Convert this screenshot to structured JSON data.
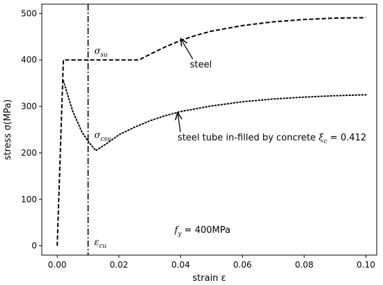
{
  "chart_data": {
    "type": "line",
    "xlabel": "strain ε",
    "ylabel": "stress σ(MPa)",
    "xlim": [
      -0.005,
      0.1035
    ],
    "ylim": [
      -20,
      520
    ],
    "x_ticks": [
      "0.00",
      "0.02",
      "0.04",
      "0.06",
      "0.08",
      "0.10"
    ],
    "y_ticks": [
      "0",
      "100",
      "200",
      "300",
      "400",
      "500"
    ],
    "grid": false,
    "series": [
      {
        "name": "steel",
        "style": "dashed",
        "color": "#000000",
        "points": [
          [
            0.0,
            0
          ],
          [
            0.002,
            400
          ],
          [
            0.0265,
            400
          ],
          [
            0.03,
            412
          ],
          [
            0.035,
            428
          ],
          [
            0.04,
            442
          ],
          [
            0.045,
            453
          ],
          [
            0.05,
            462
          ],
          [
            0.06,
            474
          ],
          [
            0.07,
            482
          ],
          [
            0.08,
            487
          ],
          [
            0.09,
            490
          ],
          [
            0.1,
            491
          ]
        ]
      },
      {
        "name": "steel tube in-filled by concrete ξc = 0.412",
        "style": "dotted",
        "color": "#000000",
        "points": [
          [
            0.002,
            355
          ],
          [
            0.005,
            290
          ],
          [
            0.008,
            245
          ],
          [
            0.01,
            225
          ],
          [
            0.0125,
            205
          ],
          [
            0.016,
            220
          ],
          [
            0.02,
            239
          ],
          [
            0.025,
            255
          ],
          [
            0.03,
            269
          ],
          [
            0.035,
            280
          ],
          [
            0.04,
            289
          ],
          [
            0.05,
            301
          ],
          [
            0.06,
            310
          ],
          [
            0.07,
            316
          ],
          [
            0.08,
            320
          ],
          [
            0.09,
            323
          ],
          [
            0.1,
            325
          ]
        ]
      }
    ],
    "vline": {
      "x": 0.01,
      "style": "dash-dot"
    },
    "annotations": [
      {
        "base": "σ",
        "sub": "su",
        "x": 0.012,
        "y": 413
      },
      {
        "base": "σ",
        "sub": "csu",
        "x": 0.012,
        "y": 232
      },
      {
        "base": "ε",
        "sub": "cu",
        "x": 0.012,
        "y": 2
      },
      {
        "text": "steel",
        "x": 0.043,
        "y": 384,
        "arrow_to": [
          0.04,
          446
        ]
      },
      {
        "text": "steel tube in-filled by concrete",
        "symbol": "ξ",
        "sub": "c",
        "value": " = 0.412",
        "x": 0.039,
        "y": 227,
        "arrow_to": [
          0.039,
          287
        ]
      },
      {
        "base": "f",
        "sub": "y",
        "value": " = 400MPa",
        "x": 0.038,
        "y": 28
      }
    ]
  }
}
